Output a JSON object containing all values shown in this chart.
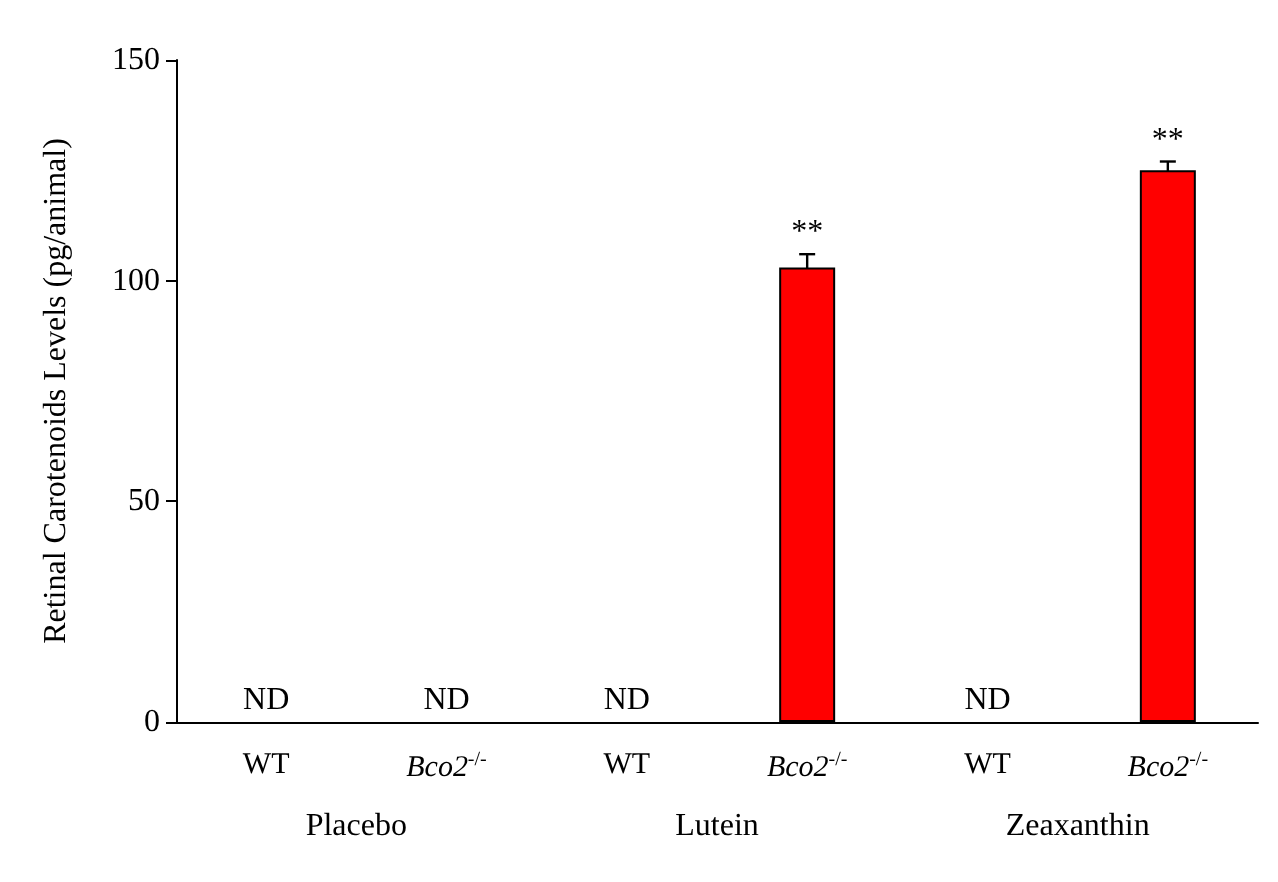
{
  "chart_data": {
    "type": "bar",
    "ylabel": "Retinal Carotenoids Levels (pg/animal)",
    "categories": [
      "WT",
      "Bco2$^{-/-}$",
      "WT",
      "Bco2$^{-/-}$",
      "WT",
      "Bco2$^{-/-}$"
    ],
    "values": [
      null,
      null,
      null,
      103,
      null,
      125
    ],
    "errors": [
      null,
      null,
      null,
      3,
      null,
      2
    ],
    "value_labels": [
      "ND",
      "ND",
      "ND",
      "**",
      "ND",
      "**"
    ],
    "color": "#ff0000",
    "annotations": [
      "Placebo",
      "Lutein",
      "Zeaxanthin"
    ],
    "ylim": [
      0,
      150
    ],
    "yticks": [
      0,
      50,
      100,
      150
    ],
    "grid": false
  }
}
